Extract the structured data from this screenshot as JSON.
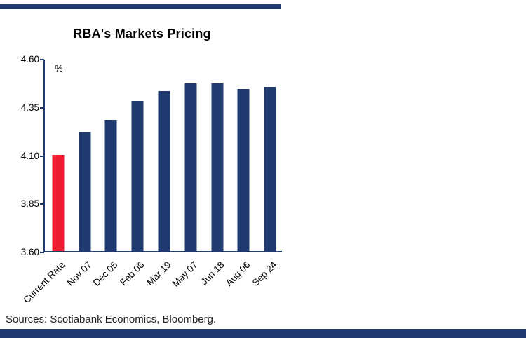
{
  "page": {
    "title": "RBA's Markets Pricing",
    "sources": "Sources: Scotiabank Economics, Bloomberg.",
    "colors": {
      "navy": "#1f3a6e",
      "red": "#ed1c2e",
      "axis": "#1f3a6e",
      "text": "#000000"
    }
  },
  "chart_data": {
    "type": "bar",
    "title": "RBA's Markets Pricing",
    "xlabel": "",
    "ylabel": "%",
    "categories": [
      "Current Rate",
      "Nov 07",
      "Dec 05",
      "Feb 06",
      "Mar 19",
      "May 07",
      "Jun 18",
      "Aug 06",
      "Sep 24"
    ],
    "values": [
      4.1,
      4.22,
      4.28,
      4.38,
      4.43,
      4.47,
      4.47,
      4.44,
      4.45
    ],
    "bar_colors": [
      "#ed1c2e",
      "#1f3a6e",
      "#1f3a6e",
      "#1f3a6e",
      "#1f3a6e",
      "#1f3a6e",
      "#1f3a6e",
      "#1f3a6e",
      "#1f3a6e"
    ],
    "ylim": [
      3.6,
      4.6
    ],
    "yticks": [
      3.6,
      3.85,
      4.1,
      4.35,
      4.6
    ],
    "ytick_format_decimals": 2,
    "grid": false,
    "legend_position": "none"
  }
}
